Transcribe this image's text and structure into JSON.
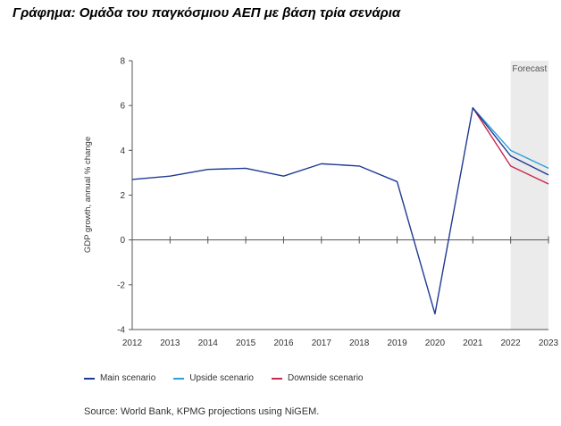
{
  "title": "Γράφημα: Ομάδα του παγκόσμιου ΑΕΠ με βάση τρία σενάρια",
  "source": "Source: World Bank, KPMG projections using NiGEM.",
  "chart_data": {
    "type": "line",
    "ylabel": "GDP growth, annual % change",
    "xlabel": "",
    "ylim": [
      -4,
      8
    ],
    "yticks": [
      8,
      6,
      4,
      2,
      0,
      -2,
      -4
    ],
    "x": [
      "2012",
      "2013",
      "2014",
      "2015",
      "2016",
      "2017",
      "2018",
      "2019",
      "2020",
      "2021",
      "2022",
      "2023"
    ],
    "forecast_label": "Forecast",
    "forecast_region": [
      "2022",
      "2023"
    ],
    "grid": false,
    "legend_position": "bottom",
    "series": [
      {
        "name": "Main scenario",
        "color": "#1f3a93",
        "values": [
          2.7,
          2.85,
          3.15,
          3.2,
          2.85,
          3.4,
          3.3,
          2.6,
          -3.3,
          5.9,
          3.75,
          2.9
        ]
      },
      {
        "name": "Upside scenario",
        "color": "#2b9fd9",
        "values": [
          null,
          null,
          null,
          null,
          null,
          null,
          null,
          null,
          null,
          5.9,
          4.0,
          3.2
        ]
      },
      {
        "name": "Downside scenario",
        "color": "#c8284e",
        "values": [
          null,
          null,
          null,
          null,
          null,
          null,
          null,
          null,
          null,
          5.9,
          3.3,
          2.5
        ]
      }
    ]
  }
}
